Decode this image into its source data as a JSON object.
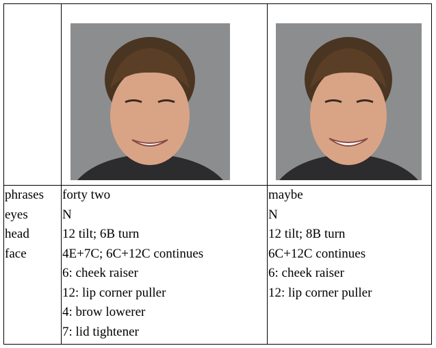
{
  "table": {
    "rows": [
      {
        "label": "phrases",
        "cells": [
          [
            "forty two"
          ],
          [
            "maybe"
          ]
        ]
      },
      {
        "label": "eyes",
        "cells": [
          [
            "N"
          ],
          [
            "N"
          ]
        ]
      },
      {
        "label": "head",
        "cells": [
          [
            "12 tilt; 6B turn"
          ],
          [
            "12 tilt; 8B turn"
          ]
        ]
      },
      {
        "label": "face",
        "cells": [
          [
            "4E+7C; 6C+12C continues",
            "6: cheek raiser",
            "12: lip corner puller",
            "4: brow lowerer",
            "7: lid tightener"
          ],
          [
            "6C+12C continues",
            "6: cheek raiser",
            "12: lip corner puller"
          ]
        ]
      }
    ]
  }
}
